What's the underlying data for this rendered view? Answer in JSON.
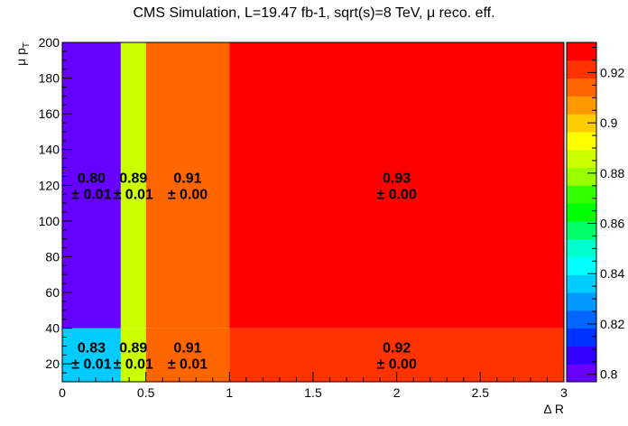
{
  "chart_data": {
    "type": "heatmap",
    "title": "CMS Simulation, L=19.47 fb-1, sqrt(s)=8 TeV, μ reco. eff.",
    "xlabel": "Δ R",
    "ylabel": "μ p",
    "ylabel_sub": "T",
    "xlim": [
      0,
      3
    ],
    "ylim": [
      10,
      200
    ],
    "x_ticks": [
      "0",
      "0.5",
      "1",
      "1.5",
      "2",
      "2.5",
      "3"
    ],
    "y_ticks": [
      "20",
      "40",
      "60",
      "80",
      "100",
      "120",
      "140",
      "160",
      "180",
      "200"
    ],
    "x_bin_edges": [
      0,
      0.35,
      0.5,
      1,
      3
    ],
    "y_bin_edges": [
      10,
      40,
      200
    ],
    "cells": [
      {
        "xbin": 0,
        "ybin": 0,
        "value": "0.83",
        "error": "0.01",
        "z": 0.835
      },
      {
        "xbin": 1,
        "ybin": 0,
        "value": "0.89",
        "error": "0.01",
        "z": 0.888
      },
      {
        "xbin": 2,
        "ybin": 0,
        "value": "0.91",
        "error": "0.01",
        "z": 0.912
      },
      {
        "xbin": 3,
        "ybin": 0,
        "value": "0.92",
        "error": "0.00",
        "z": 0.922
      },
      {
        "xbin": 0,
        "ybin": 1,
        "value": "0.80",
        "error": "0.01",
        "z": 0.8
      },
      {
        "xbin": 1,
        "ybin": 1,
        "value": "0.89",
        "error": "0.01",
        "z": 0.887
      },
      {
        "xbin": 2,
        "ybin": 1,
        "value": "0.91",
        "error": "0.00",
        "z": 0.915
      },
      {
        "xbin": 3,
        "ybin": 1,
        "value": "0.93",
        "error": "0.00",
        "z": 0.928
      }
    ],
    "colorbar": {
      "range": [
        0.797,
        0.932
      ],
      "ticks": [
        "0.8",
        "0.82",
        "0.84",
        "0.86",
        "0.88",
        "0.9",
        "0.92"
      ],
      "colors": [
        "#6600ff",
        "#3300ff",
        "#0033ff",
        "#0066ff",
        "#0099ff",
        "#00ccff",
        "#00ffff",
        "#00ffcc",
        "#00ff66",
        "#00ff00",
        "#33ff00",
        "#99ff00",
        "#ccff00",
        "#ffff00",
        "#ffcc00",
        "#ff9900",
        "#ff6600",
        "#ff3300",
        "#ff0000"
      ]
    }
  }
}
